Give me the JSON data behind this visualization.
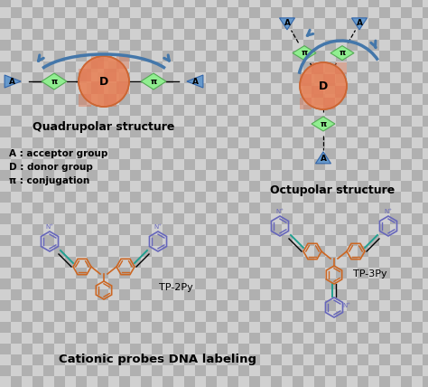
{
  "bg_checker_light": "#d0d0d0",
  "bg_checker_dark": "#b0b0b0",
  "orange_fill": "#E8845A",
  "orange_edge": "#cc6633",
  "green_fill": "#90EE90",
  "green_edge": "#55aa55",
  "blue_tri": "#6699CC",
  "blue_arrow": "#4477AA",
  "dark_orange": "#CC6622",
  "teal": "#20A090",
  "purple": "#6666BB",
  "title1": "Quadrupolar structure",
  "title2": "Octupolar structure",
  "title3": "Cationic probes DNA labeling",
  "legend_A": "A : acceptor group",
  "legend_D": "D : donor group",
  "legend_pi": "π : conjugation",
  "label_A": "A",
  "label_D": "D",
  "label_pi": "π",
  "label_tp2py": "TP-2Py",
  "label_tp3py": "TP-3Py",
  "checker_size": 12
}
